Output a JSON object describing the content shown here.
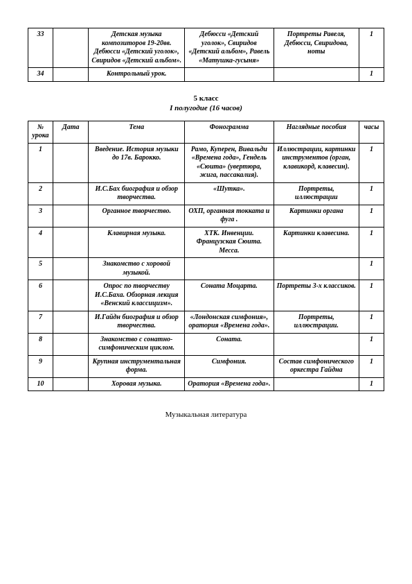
{
  "top_table": {
    "rows": [
      {
        "num": "33",
        "date": "",
        "theme": "Детская музыка композиторов 19-20вв. Дебюсси «Детский уголок», Свиридов «Детский альбом».",
        "phono": "Дебюсси «Детский уголок», Свиридов «Детский альбом», Равель «Матушка-гусыня»",
        "visual": "Портреты Равеля, Дебюсси, Свиридова, ноты",
        "hours": "1"
      },
      {
        "num": "34",
        "date": "",
        "theme": "Контрольный урок.",
        "phono": "",
        "visual": "",
        "hours": "1"
      }
    ]
  },
  "section": {
    "title": "5 класс",
    "subtitle": "I полугодие (16 часов)"
  },
  "main_table": {
    "headers": {
      "num": "№ урока",
      "date": "Дата",
      "theme": "Тема",
      "phono": "Фонограмма",
      "visual": "Наглядные пособия",
      "hours": "часы"
    },
    "rows": [
      {
        "num": "1",
        "date": "",
        "theme": "Введение. История музыки до 17в. Барокко.",
        "phono": "Рамо, Куперен, Вивальди «Времена года», Гендель «Сюита» (увертюра, жига, пассакалия).",
        "visual": "Иллюстрации, картинки инструментов (орган, клавикорд, клавесин).",
        "hours": "1"
      },
      {
        "num": "2",
        "date": "",
        "theme": "И.С.Бах биография и обзор творчества.",
        "phono": "«Шутка».",
        "visual": "Портреты, иллюстрации",
        "hours": "1"
      },
      {
        "num": "3",
        "date": "",
        "theme": "Органное творчество.",
        "phono": "ОХП, органная токката и фуга .",
        "visual": "Картинки органа",
        "hours": "1"
      },
      {
        "num": "4",
        "date": "",
        "theme": "Клавирная музыка.",
        "phono": "ХТК. Инвенции. Французская Сюита. Месса.",
        "visual": "Картинки клавесина.",
        "hours": "1"
      },
      {
        "num": "5",
        "date": "",
        "theme": "Знакомство с хоровой музыкой.",
        "phono": "",
        "visual": "",
        "hours": "1"
      },
      {
        "num": "6",
        "date": "",
        "theme": "Опрос по творчеству И.С.Баха. Обзорная лекция «Венский классицизм».",
        "phono": "Соната Моцарта.",
        "visual": "Портреты 3-х классиков.",
        "hours": "1"
      },
      {
        "num": "7",
        "date": "",
        "theme": "И.Гайдн биография и обзор творчества.",
        "phono": "«Лондонская симфония», оратория «Времена года».",
        "visual": "Портреты, иллюстрации.",
        "hours": "1"
      },
      {
        "num": "8",
        "date": "",
        "theme": "Знакомство с сонатно-симфоническим циклом.",
        "phono": "Соната.",
        "visual": "",
        "hours": "1"
      },
      {
        "num": "9",
        "date": "",
        "theme": "Крупная инструментальная форма.",
        "phono": "Симфония.",
        "visual": "Состав симфонического оркестра Гайдна",
        "hours": "1"
      },
      {
        "num": "10",
        "date": "",
        "theme": "Хоровая музыка.",
        "phono": "Оратория «Времена года».",
        "visual": "",
        "hours": "1"
      }
    ]
  },
  "footer": "Музыкальная литература"
}
